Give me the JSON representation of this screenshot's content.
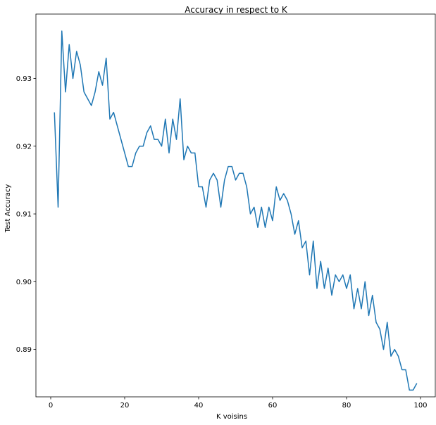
{
  "chart_data": {
    "type": "line",
    "title": "Accuracy in respect to K",
    "xlabel": "K voisins",
    "ylabel": "Test Accuracy",
    "xlim": [
      -4,
      104
    ],
    "ylim": [
      0.883,
      0.9395
    ],
    "xticks": [
      0,
      20,
      40,
      60,
      80,
      100
    ],
    "xtick_labels": [
      "0",
      "20",
      "40",
      "60",
      "80",
      "100"
    ],
    "yticks": [
      0.89,
      0.9,
      0.91,
      0.92,
      0.93
    ],
    "ytick_labels": [
      "0.89",
      "0.90",
      "0.91",
      "0.92",
      "0.93"
    ],
    "grid": false,
    "line_color": "#1f77b4",
    "series": [
      {
        "x": [
          1,
          2,
          3,
          4,
          5,
          6,
          7,
          8,
          9,
          10,
          11,
          12,
          13,
          14,
          15,
          16,
          17,
          18,
          19,
          20,
          21,
          22,
          23,
          24,
          25,
          26,
          27,
          28,
          29,
          30,
          31,
          32,
          33,
          34,
          35,
          36,
          37,
          38,
          39,
          40,
          41,
          42,
          43,
          44,
          45,
          46,
          47,
          48,
          49,
          50,
          51,
          52,
          53,
          54,
          55,
          56,
          57,
          58,
          59,
          60,
          61,
          62,
          63,
          64,
          65,
          66,
          67,
          68,
          69,
          70,
          71,
          72,
          73,
          74,
          75,
          76,
          77,
          78,
          79,
          80,
          81,
          82,
          83,
          84,
          85,
          86,
          87,
          88,
          89,
          90,
          91,
          92,
          93,
          94,
          95,
          96,
          97,
          98,
          99
        ],
        "values": [
          0.925,
          0.911,
          0.937,
          0.928,
          0.935,
          0.93,
          0.934,
          0.932,
          0.928,
          0.927,
          0.926,
          0.928,
          0.931,
          0.929,
          0.933,
          0.924,
          0.925,
          0.923,
          0.921,
          0.919,
          0.917,
          0.917,
          0.919,
          0.92,
          0.92,
          0.922,
          0.923,
          0.921,
          0.921,
          0.92,
          0.924,
          0.919,
          0.924,
          0.921,
          0.927,
          0.918,
          0.92,
          0.919,
          0.919,
          0.914,
          0.914,
          0.911,
          0.915,
          0.916,
          0.915,
          0.911,
          0.915,
          0.917,
          0.917,
          0.915,
          0.916,
          0.916,
          0.914,
          0.91,
          0.911,
          0.908,
          0.911,
          0.908,
          0.911,
          0.909,
          0.914,
          0.912,
          0.913,
          0.912,
          0.91,
          0.907,
          0.909,
          0.905,
          0.906,
          0.901,
          0.906,
          0.899,
          0.903,
          0.899,
          0.902,
          0.898,
          0.901,
          0.9,
          0.901,
          0.899,
          0.901,
          0.896,
          0.899,
          0.896,
          0.9,
          0.895,
          0.898,
          0.894,
          0.893,
          0.89,
          0.894,
          0.889,
          0.89,
          0.889,
          0.887,
          0.887,
          0.884,
          0.884,
          0.885
        ]
      }
    ]
  }
}
